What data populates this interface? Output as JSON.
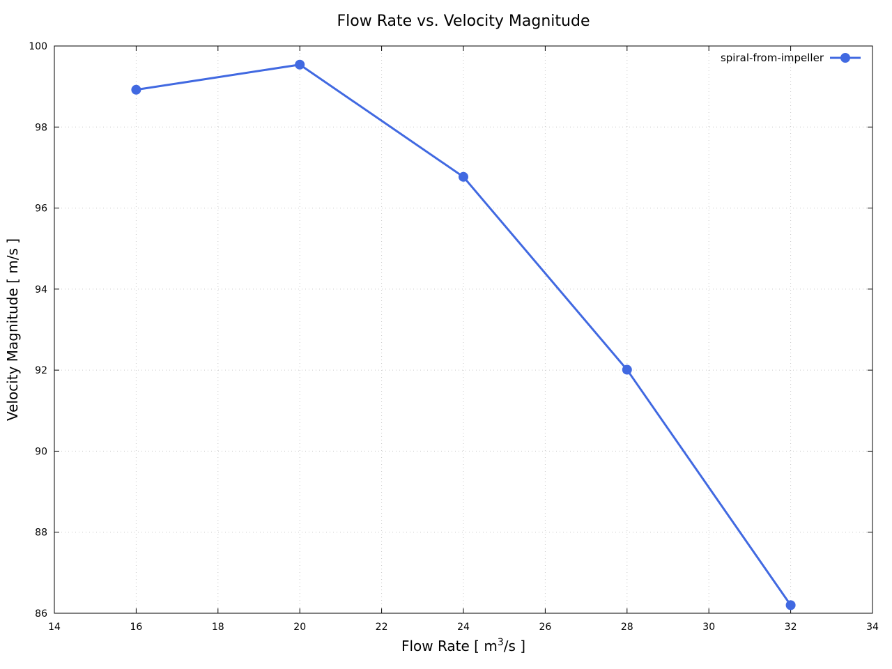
{
  "chart_data": {
    "type": "line",
    "title": "Flow Rate vs. Velocity Magnitude",
    "xlabel": "Flow Rate [ m3/s ]",
    "xlabel_parts": {
      "before": "Flow Rate [ m",
      "sup": "3",
      "after": "/s ]"
    },
    "ylabel": "Velocity Magnitude [ m/s ]",
    "xlim": [
      14,
      34
    ],
    "ylim": [
      86,
      100
    ],
    "xticks": [
      14,
      16,
      18,
      20,
      22,
      24,
      26,
      28,
      30,
      32,
      34
    ],
    "yticks": [
      86,
      88,
      90,
      92,
      94,
      96,
      98,
      100
    ],
    "grid": true,
    "legend_position": "top-right",
    "series": [
      {
        "name": "spiral-from-impeller",
        "color": "#4169e1",
        "marker": "circle",
        "x": [
          16,
          20,
          24,
          28,
          32
        ],
        "y": [
          98.92,
          99.54,
          96.77,
          92.01,
          86.2
        ]
      }
    ]
  }
}
